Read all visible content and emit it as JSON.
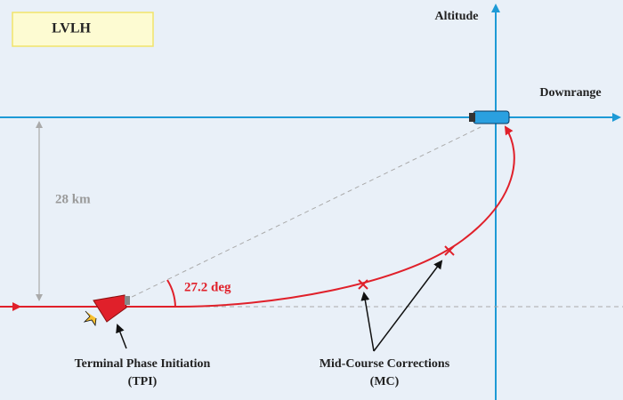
{
  "frame": {
    "label": "LVLH"
  },
  "axes": {
    "vertical": "Altitude",
    "horizontal": "Downrange"
  },
  "dimension": {
    "label": "28 km"
  },
  "angle": {
    "label": "27.2 deg"
  },
  "callouts": {
    "tpi": {
      "title": "Terminal Phase Initiation",
      "abbr": "(TPI)"
    },
    "mc": {
      "title": "Mid-Course Corrections",
      "abbr": "(MC)"
    }
  }
}
